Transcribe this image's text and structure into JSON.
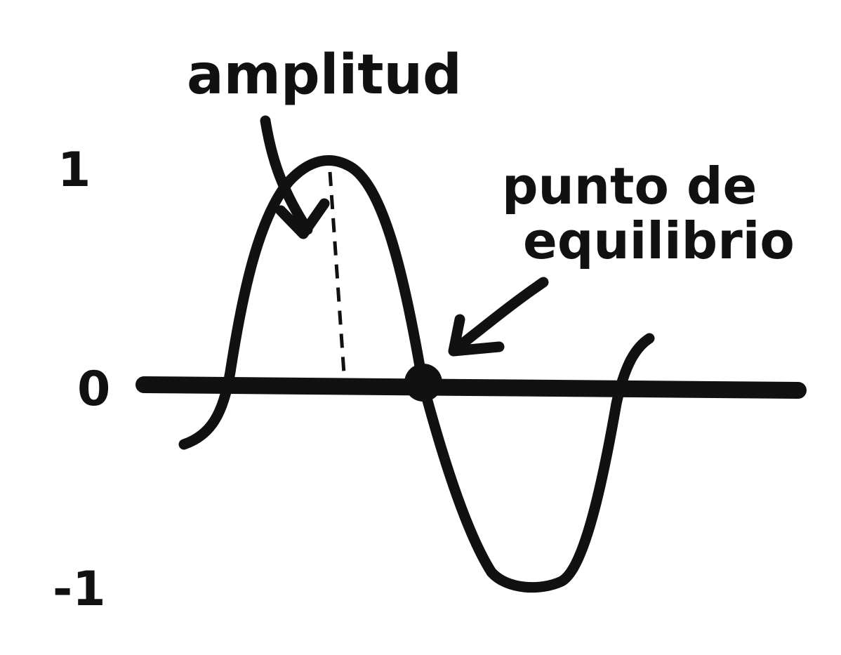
{
  "colors": {
    "ink": "#111111",
    "background": "#ffffff"
  },
  "labels": {
    "amplitude": "amplitud",
    "equilibrium_line1": "punto de",
    "equilibrium_line2": "equilibrio"
  },
  "axis": {
    "ticks": [
      "1",
      "0",
      "-1"
    ]
  },
  "icons": {
    "amplitude_arrow": "arrow-pointing-down-right",
    "equilibrium_arrow": "arrow-pointing-down-left",
    "equilibrium_point": "filled-circle-marker"
  }
}
